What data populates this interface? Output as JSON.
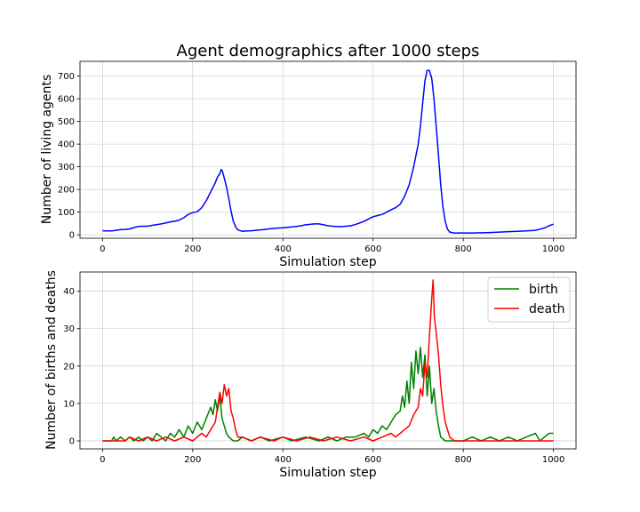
{
  "chart_data": [
    {
      "type": "line",
      "title": "Agent demographics after 1000 steps",
      "xlabel": "Simulation step",
      "ylabel": "Number of living agents",
      "xlim": [
        -50,
        1050
      ],
      "ylim": [
        -15,
        765
      ],
      "xticks": [
        0,
        200,
        400,
        600,
        800,
        1000
      ],
      "yticks": [
        0,
        100,
        200,
        300,
        400,
        500,
        600,
        700
      ],
      "grid": true,
      "series": [
        {
          "name": "living agents",
          "color": "#0000ff",
          "points": [
            [
              0,
              18
            ],
            [
              10,
              17
            ],
            [
              20,
              17
            ],
            [
              30,
              20
            ],
            [
              40,
              23
            ],
            [
              50,
              24
            ],
            [
              60,
              26
            ],
            [
              70,
              32
            ],
            [
              80,
              37
            ],
            [
              90,
              38
            ],
            [
              100,
              38
            ],
            [
              110,
              42
            ],
            [
              120,
              45
            ],
            [
              130,
              48
            ],
            [
              140,
              52
            ],
            [
              150,
              57
            ],
            [
              160,
              60
            ],
            [
              170,
              65
            ],
            [
              180,
              75
            ],
            [
              190,
              90
            ],
            [
              200,
              98
            ],
            [
              210,
              102
            ],
            [
              220,
              120
            ],
            [
              230,
              150
            ],
            [
              240,
              190
            ],
            [
              250,
              230
            ],
            [
              255,
              255
            ],
            [
              260,
              270
            ],
            [
              263,
              288
            ],
            [
              266,
              280
            ],
            [
              270,
              250
            ],
            [
              275,
              210
            ],
            [
              280,
              160
            ],
            [
              285,
              105
            ],
            [
              290,
              60
            ],
            [
              295,
              35
            ],
            [
              300,
              22
            ],
            [
              310,
              15
            ],
            [
              320,
              17
            ],
            [
              330,
              18
            ],
            [
              340,
              20
            ],
            [
              350,
              22
            ],
            [
              360,
              24
            ],
            [
              370,
              26
            ],
            [
              380,
              28
            ],
            [
              390,
              30
            ],
            [
              400,
              31
            ],
            [
              410,
              33
            ],
            [
              420,
              35
            ],
            [
              430,
              37
            ],
            [
              440,
              40
            ],
            [
              450,
              44
            ],
            [
              460,
              46
            ],
            [
              470,
              48
            ],
            [
              480,
              48
            ],
            [
              490,
              44
            ],
            [
              500,
              40
            ],
            [
              510,
              38
            ],
            [
              520,
              37
            ],
            [
              530,
              36
            ],
            [
              540,
              38
            ],
            [
              550,
              40
            ],
            [
              560,
              45
            ],
            [
              570,
              52
            ],
            [
              580,
              60
            ],
            [
              590,
              70
            ],
            [
              600,
              80
            ],
            [
              610,
              85
            ],
            [
              620,
              90
            ],
            [
              630,
              100
            ],
            [
              640,
              110
            ],
            [
              650,
              120
            ],
            [
              660,
              135
            ],
            [
              670,
              170
            ],
            [
              680,
              220
            ],
            [
              690,
              300
            ],
            [
              700,
              400
            ],
            [
              705,
              480
            ],
            [
              710,
              580
            ],
            [
              715,
              680
            ],
            [
              720,
              725
            ],
            [
              725,
              725
            ],
            [
              730,
              690
            ],
            [
              735,
              600
            ],
            [
              740,
              480
            ],
            [
              745,
              350
            ],
            [
              750,
              220
            ],
            [
              755,
              120
            ],
            [
              760,
              60
            ],
            [
              765,
              25
            ],
            [
              770,
              12
            ],
            [
              780,
              8
            ],
            [
              800,
              8
            ],
            [
              820,
              8
            ],
            [
              840,
              9
            ],
            [
              860,
              10
            ],
            [
              880,
              12
            ],
            [
              900,
              14
            ],
            [
              920,
              15
            ],
            [
              940,
              17
            ],
            [
              960,
              20
            ],
            [
              970,
              25
            ],
            [
              980,
              30
            ],
            [
              990,
              40
            ],
            [
              1000,
              47
            ]
          ]
        }
      ]
    },
    {
      "type": "line",
      "title": "",
      "xlabel": "Simulation step",
      "ylabel": "Number of births and deaths",
      "xlim": [
        -50,
        1050
      ],
      "ylim": [
        -2.15,
        45.15
      ],
      "xticks": [
        0,
        200,
        400,
        600,
        800,
        1000
      ],
      "yticks": [
        0,
        10,
        20,
        30,
        40
      ],
      "grid": true,
      "legend": {
        "position": "top-right",
        "entries": [
          "birth",
          "death"
        ]
      },
      "series": [
        {
          "name": "birth",
          "color": "#008000",
          "points": [
            [
              0,
              0
            ],
            [
              10,
              0
            ],
            [
              20,
              0
            ],
            [
              25,
              1
            ],
            [
              30,
              0
            ],
            [
              40,
              1
            ],
            [
              50,
              0
            ],
            [
              60,
              1
            ],
            [
              70,
              0
            ],
            [
              80,
              1
            ],
            [
              90,
              0
            ],
            [
              100,
              1
            ],
            [
              110,
              0
            ],
            [
              120,
              2
            ],
            [
              130,
              1
            ],
            [
              140,
              0
            ],
            [
              150,
              2
            ],
            [
              160,
              1
            ],
            [
              170,
              3
            ],
            [
              180,
              1
            ],
            [
              190,
              4
            ],
            [
              200,
              2
            ],
            [
              210,
              5
            ],
            [
              220,
              3
            ],
            [
              230,
              6
            ],
            [
              240,
              9
            ],
            [
              245,
              7
            ],
            [
              250,
              11
            ],
            [
              255,
              8
            ],
            [
              260,
              12
            ],
            [
              265,
              6
            ],
            [
              270,
              4
            ],
            [
              275,
              2
            ],
            [
              280,
              1
            ],
            [
              290,
              0
            ],
            [
              300,
              0
            ],
            [
              310,
              1
            ],
            [
              330,
              0
            ],
            [
              350,
              1
            ],
            [
              370,
              0
            ],
            [
              400,
              1
            ],
            [
              420,
              0
            ],
            [
              450,
              1
            ],
            [
              480,
              0
            ],
            [
              500,
              1
            ],
            [
              520,
              0
            ],
            [
              540,
              1
            ],
            [
              560,
              1
            ],
            [
              580,
              2
            ],
            [
              590,
              1
            ],
            [
              600,
              3
            ],
            [
              610,
              2
            ],
            [
              620,
              4
            ],
            [
              630,
              3
            ],
            [
              640,
              5
            ],
            [
              650,
              7
            ],
            [
              660,
              8
            ],
            [
              665,
              12
            ],
            [
              670,
              9
            ],
            [
              675,
              16
            ],
            [
              680,
              10
            ],
            [
              685,
              21
            ],
            [
              690,
              14
            ],
            [
              695,
              24
            ],
            [
              700,
              18
            ],
            [
              705,
              25
            ],
            [
              710,
              17
            ],
            [
              715,
              23
            ],
            [
              720,
              12
            ],
            [
              725,
              20
            ],
            [
              730,
              10
            ],
            [
              735,
              14
            ],
            [
              740,
              8
            ],
            [
              745,
              4
            ],
            [
              750,
              1
            ],
            [
              760,
              0
            ],
            [
              780,
              0
            ],
            [
              800,
              0
            ],
            [
              820,
              1
            ],
            [
              840,
              0
            ],
            [
              860,
              1
            ],
            [
              880,
              0
            ],
            [
              900,
              1
            ],
            [
              920,
              0
            ],
            [
              940,
              1
            ],
            [
              960,
              2
            ],
            [
              970,
              0
            ],
            [
              980,
              1
            ],
            [
              990,
              2
            ],
            [
              1000,
              2
            ]
          ]
        },
        {
          "name": "death",
          "color": "#ff0000",
          "points": [
            [
              0,
              0
            ],
            [
              50,
              0
            ],
            [
              60,
              1
            ],
            [
              80,
              0
            ],
            [
              100,
              1
            ],
            [
              120,
              0
            ],
            [
              140,
              1
            ],
            [
              160,
              0
            ],
            [
              180,
              1
            ],
            [
              200,
              0
            ],
            [
              210,
              1
            ],
            [
              220,
              2
            ],
            [
              230,
              1
            ],
            [
              240,
              3
            ],
            [
              250,
              5
            ],
            [
              255,
              9
            ],
            [
              260,
              13
            ],
            [
              265,
              10
            ],
            [
              270,
              15
            ],
            [
              275,
              12
            ],
            [
              280,
              14
            ],
            [
              285,
              8
            ],
            [
              290,
              6
            ],
            [
              295,
              3
            ],
            [
              300,
              1
            ],
            [
              310,
              1
            ],
            [
              330,
              0
            ],
            [
              350,
              1
            ],
            [
              380,
              0
            ],
            [
              400,
              1
            ],
            [
              430,
              0
            ],
            [
              460,
              1
            ],
            [
              490,
              0
            ],
            [
              520,
              1
            ],
            [
              550,
              0
            ],
            [
              580,
              1
            ],
            [
              600,
              0
            ],
            [
              620,
              1
            ],
            [
              640,
              2
            ],
            [
              650,
              1
            ],
            [
              660,
              2
            ],
            [
              670,
              3
            ],
            [
              680,
              4
            ],
            [
              690,
              7
            ],
            [
              700,
              9
            ],
            [
              705,
              14
            ],
            [
              710,
              12
            ],
            [
              715,
              21
            ],
            [
              720,
              17
            ],
            [
              725,
              28
            ],
            [
              730,
              38
            ],
            [
              733,
              43
            ],
            [
              736,
              33
            ],
            [
              740,
              29
            ],
            [
              745,
              23
            ],
            [
              750,
              15
            ],
            [
              755,
              9
            ],
            [
              760,
              5
            ],
            [
              765,
              3
            ],
            [
              770,
              1
            ],
            [
              780,
              0
            ],
            [
              800,
              0
            ],
            [
              850,
              0
            ],
            [
              900,
              0
            ],
            [
              950,
              0
            ],
            [
              1000,
              0
            ]
          ]
        }
      ]
    }
  ]
}
